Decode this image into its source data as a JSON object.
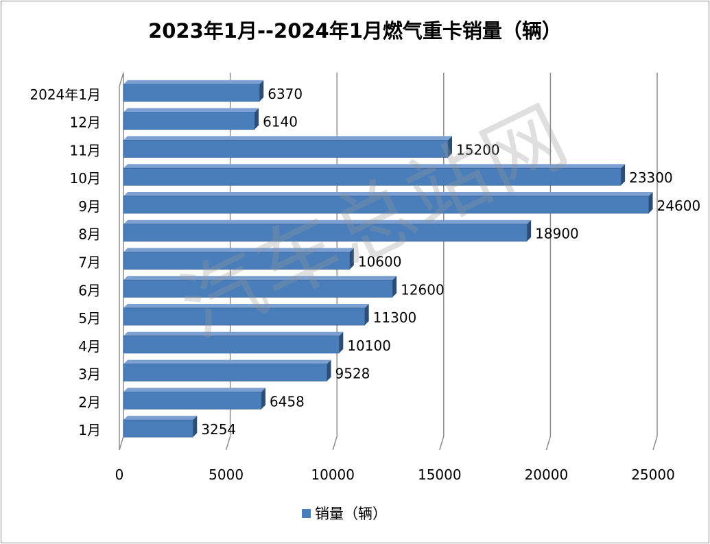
{
  "chart_data": {
    "type": "bar",
    "orientation": "horizontal",
    "title": "2023年1月--2024年1月燃气重卡销量（辆）",
    "categories": [
      "1月",
      "2月",
      "3月",
      "4月",
      "5月",
      "6月",
      "7月",
      "8月",
      "9月",
      "10月",
      "11月",
      "12月",
      "2024年1月"
    ],
    "series": [
      {
        "name": "销量（辆）",
        "values": [
          3254,
          6458,
          9528,
          10100,
          11300,
          12600,
          10600,
          18900,
          24600,
          23300,
          15200,
          6140,
          6370
        ]
      }
    ],
    "xlim": [
      0,
      25000
    ],
    "xticks": [
      "0",
      "5000",
      "10000",
      "15000",
      "20000",
      "25000"
    ],
    "grid": true,
    "legend_position": "bottom",
    "data_labels": true,
    "bar_color": "#4a7ebb"
  },
  "watermark": "汽车总站网"
}
